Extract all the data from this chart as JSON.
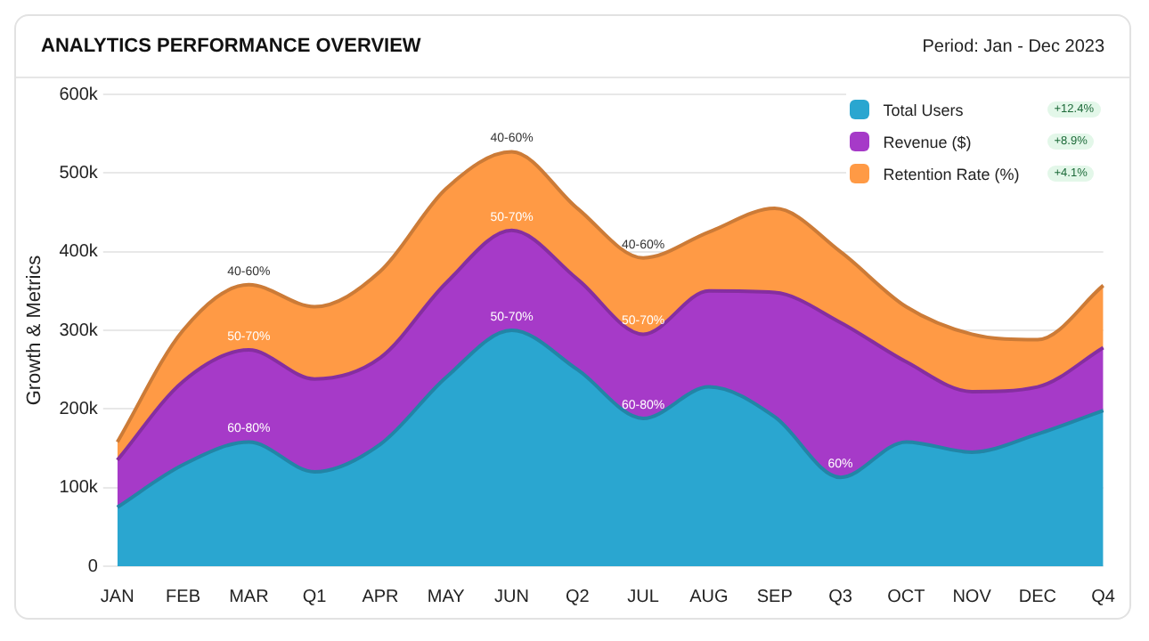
{
  "chart_data": {
    "type": "area",
    "title": "ANALYTICS PERFORMANCE OVERVIEW",
    "subtitle": "Period: Jan - Dec 2023",
    "ylabel": "Growth & Metrics",
    "categories": [
      "JAN",
      "FEB",
      "MAR",
      "Q1",
      "APR",
      "MAY",
      "JUN",
      "Q2",
      "JUL",
      "AUG",
      "SEP",
      "Q3",
      "OCT",
      "NOV",
      "DEC",
      "Q4"
    ],
    "stacked": true,
    "grid": "y",
    "legend": "top right",
    "marker": "none",
    "ylim": [
      0,
      600000
    ],
    "yticks": [
      {
        "value": 0,
        "label": "0"
      },
      {
        "value": 100000,
        "label": "100k"
      },
      {
        "value": 200000,
        "label": "200k"
      },
      {
        "value": 300000,
        "label": "300k"
      },
      {
        "value": 400000,
        "label": "400k"
      },
      {
        "value": 500000,
        "label": "500k"
      },
      {
        "value": 600000,
        "label": "600k"
      }
    ],
    "series": [
      {
        "name": "Total Users",
        "color": "#2aa6d0",
        "values": [
          75000,
          129000,
          158000,
          120000,
          155000,
          240000,
          300000,
          250000,
          188000,
          228000,
          190000,
          113000,
          158000,
          145000,
          168000,
          198000
        ]
      },
      {
        "name": "Revenue ($)",
        "color": "#a63ac8",
        "values": [
          60000,
          106000,
          117000,
          118000,
          110000,
          120000,
          127000,
          115000,
          107000,
          122000,
          158000,
          197000,
          102000,
          77000,
          60000,
          80000
        ]
      },
      {
        "name": "Retention Rate (%)",
        "color": "#ff9a45",
        "values": [
          23000,
          65000,
          83000,
          92000,
          110000,
          120000,
          100000,
          90000,
          97000,
          75000,
          107000,
          90000,
          70000,
          73000,
          60000,
          79000
        ]
      }
    ],
    "annotations": [
      "+12.4%",
      "+8.9%",
      "+4.1%",
      {
        "text": "40-60%",
        "x": "MAR",
        "y": 358000
      },
      {
        "text": "50-70%",
        "x": "MAR",
        "y": 275000
      },
      {
        "text": "60-80%",
        "x": "MAR",
        "y": 158000
      },
      {
        "text": "40-60%",
        "x": "JUN",
        "y": 527000
      },
      {
        "text": "50-70%",
        "x": "JUN",
        "y": 427000
      },
      {
        "text": "50-70%",
        "x": "JUN",
        "y": 300000
      },
      {
        "text": "40-60%",
        "x": "JUL",
        "y": 392000
      },
      {
        "text": "50-70%",
        "x": "JUL",
        "y": 295000
      },
      {
        "text": "60-80%",
        "x": "JUL",
        "y": 188000
      },
      {
        "text": "60%",
        "x": "Q3",
        "y": 113000
      }
    ]
  }
}
